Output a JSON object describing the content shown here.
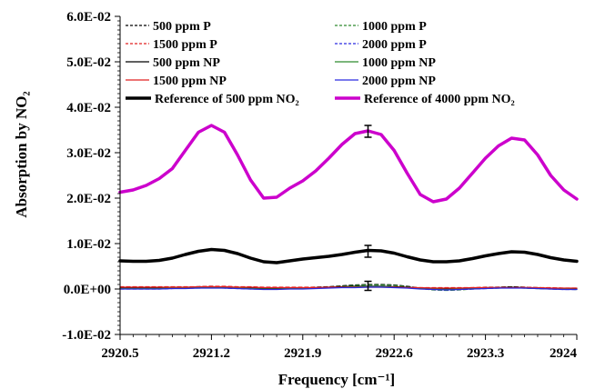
{
  "chart_data": {
    "type": "line",
    "title": "",
    "xlabel": "Frequency [cm⁻¹]",
    "ylabel": "Absorption by NO₂",
    "xlim": [
      2920.5,
      2924
    ],
    "ylim": [
      -0.01,
      0.06
    ],
    "x_ticks": [
      2920.5,
      2921.2,
      2921.9,
      2922.6,
      2923.3,
      2924
    ],
    "x_tick_labels": [
      "2920.5",
      "2921.2",
      "2921.9",
      "2922.6",
      "2923.3",
      "2924"
    ],
    "y_ticks": [
      -0.01,
      0,
      0.01,
      0.02,
      0.03,
      0.04,
      0.05,
      0.06
    ],
    "y_tick_labels": [
      "-1.0E-02",
      "0.0E+00",
      "1.0E-02",
      "2.0E-02",
      "3.0E-02",
      "4.0E-02",
      "5.0E-02",
      "6.0E-02"
    ],
    "grid": false,
    "legend_position": "top",
    "x": [
      2920.5,
      2920.6,
      2920.7,
      2920.8,
      2920.9,
      2921.0,
      2921.1,
      2921.2,
      2921.3,
      2921.4,
      2921.5,
      2921.6,
      2921.7,
      2921.8,
      2921.9,
      2922.0,
      2922.1,
      2922.2,
      2922.3,
      2922.4,
      2922.5,
      2922.6,
      2922.7,
      2922.8,
      2922.9,
      2923.0,
      2923.1,
      2923.2,
      2923.3,
      2923.4,
      2923.5,
      2923.6,
      2923.7,
      2923.8,
      2923.9,
      2924.0
    ],
    "series": [
      {
        "name": "500 ppm P",
        "color": "#000000",
        "dash": "dashed",
        "width": 1.3,
        "values": [
          0.0002,
          0.0002,
          0.0002,
          0.0002,
          0.0003,
          0.0004,
          0.0005,
          0.0006,
          0.0005,
          0.0004,
          0.0002,
          0.0001,
          0.0001,
          0.0002,
          0.0003,
          0.0004,
          0.0005,
          0.0007,
          0.0009,
          0.001,
          0.001,
          0.0009,
          0.0006,
          0.0002,
          -0.0001,
          -0.0002,
          -0.0001,
          0.0001,
          0.0003,
          0.0004,
          0.0005,
          0.0004,
          0.0003,
          0.0002,
          0.0001,
          0.0
        ]
      },
      {
        "name": "1000 ppm P",
        "color": "#2e8b2e",
        "dash": "dashed",
        "width": 1.3,
        "values": [
          0.0001,
          0.0001,
          0.0001,
          0.0001,
          0.0002,
          0.0003,
          0.0004,
          0.0005,
          0.0004,
          0.0003,
          0.0001,
          0.0,
          0.0,
          0.0001,
          0.0002,
          0.0003,
          0.0004,
          0.0006,
          0.0008,
          0.0009,
          0.0009,
          0.0008,
          0.0005,
          0.0001,
          -0.0002,
          -0.0003,
          -0.0002,
          0.0,
          0.0002,
          0.0003,
          0.0004,
          0.0003,
          0.0002,
          0.0001,
          0.0,
          -0.0001
        ]
      },
      {
        "name": "1500 ppm P",
        "color": "#e02020",
        "dash": "dashed",
        "width": 1.3,
        "values": [
          0.0005,
          0.0005,
          0.0005,
          0.0005,
          0.0005,
          0.0005,
          0.0005,
          0.0006,
          0.0006,
          0.0005,
          0.0005,
          0.0004,
          0.0004,
          0.0004,
          0.0004,
          0.0004,
          0.0004,
          0.0005,
          0.0005,
          0.0005,
          0.0005,
          0.0005,
          0.0004,
          0.0003,
          0.0003,
          0.0003,
          0.0003,
          0.0003,
          0.0004,
          0.0004,
          0.0004,
          0.0004,
          0.0003,
          0.0003,
          0.0002,
          0.0002
        ]
      },
      {
        "name": "2000 ppm P",
        "color": "#2a2ae0",
        "dash": "dashed",
        "width": 1.3,
        "values": [
          0.0,
          0.0,
          0.0,
          0.0,
          0.0001,
          0.0002,
          0.0002,
          0.0003,
          0.0002,
          0.0001,
          0.0,
          0.0,
          0.0,
          0.0001,
          0.0001,
          0.0002,
          0.0003,
          0.0004,
          0.0005,
          0.0006,
          0.0006,
          0.0005,
          0.0003,
          0.0001,
          -0.0001,
          -0.0002,
          -0.0001,
          0.0,
          0.0001,
          0.0002,
          0.0003,
          0.0002,
          0.0001,
          0.0,
          -0.0001,
          -0.0001
        ]
      },
      {
        "name": "500 ppm NP",
        "color": "#000000",
        "dash": "solid",
        "width": 1.3,
        "values": [
          0.0002,
          0.0002,
          0.0002,
          0.0002,
          0.0003,
          0.0003,
          0.0004,
          0.0004,
          0.0004,
          0.0003,
          0.0002,
          0.0001,
          0.0001,
          0.0002,
          0.0002,
          0.0003,
          0.0004,
          0.0005,
          0.0006,
          0.0006,
          0.0006,
          0.0005,
          0.0004,
          0.0002,
          0.0001,
          0.0,
          0.0001,
          0.0002,
          0.0003,
          0.0003,
          0.0004,
          0.0003,
          0.0002,
          0.0001,
          0.0001,
          0.0
        ]
      },
      {
        "name": "1000 ppm NP",
        "color": "#2e8b2e",
        "dash": "solid",
        "width": 1.3,
        "values": [
          0.0001,
          0.0001,
          0.0001,
          0.0001,
          0.0002,
          0.0002,
          0.0003,
          0.0003,
          0.0003,
          0.0002,
          0.0001,
          0.0,
          0.0,
          0.0001,
          0.0001,
          0.0002,
          0.0003,
          0.0004,
          0.0005,
          0.0005,
          0.0005,
          0.0004,
          0.0003,
          0.0001,
          0.0,
          -0.0001,
          0.0,
          0.0001,
          0.0002,
          0.0002,
          0.0003,
          0.0002,
          0.0001,
          0.0,
          0.0,
          -0.0001
        ]
      },
      {
        "name": "1500 ppm NP",
        "color": "#e02020",
        "dash": "solid",
        "width": 1.3,
        "values": [
          0.0004,
          0.0004,
          0.0004,
          0.0004,
          0.0004,
          0.0004,
          0.0005,
          0.0005,
          0.0005,
          0.0004,
          0.0004,
          0.0003,
          0.0003,
          0.0003,
          0.0003,
          0.0003,
          0.0004,
          0.0004,
          0.0004,
          0.0004,
          0.0004,
          0.0004,
          0.0003,
          0.0003,
          0.0002,
          0.0002,
          0.0002,
          0.0003,
          0.0003,
          0.0003,
          0.0003,
          0.0003,
          0.0003,
          0.0002,
          0.0002,
          0.0002
        ]
      },
      {
        "name": "2000 ppm NP",
        "color": "#2a2ae0",
        "dash": "solid",
        "width": 1.3,
        "values": [
          0.0,
          0.0,
          0.0,
          0.0,
          0.0001,
          0.0001,
          0.0002,
          0.0002,
          0.0002,
          0.0001,
          0.0,
          -0.0001,
          -0.0001,
          0.0,
          0.0,
          0.0001,
          0.0002,
          0.0003,
          0.0003,
          0.0004,
          0.0004,
          0.0003,
          0.0002,
          0.0,
          -0.0001,
          -0.0002,
          -0.0001,
          0.0,
          0.0001,
          0.0002,
          0.0002,
          0.0002,
          0.0001,
          0.0,
          -0.0001,
          -0.0001
        ]
      },
      {
        "name": "Reference of 500 ppm NO₂",
        "color": "#000000",
        "dash": "solid",
        "width": 3.5,
        "values": [
          0.0062,
          0.0061,
          0.0061,
          0.0063,
          0.0068,
          0.0076,
          0.0083,
          0.0087,
          0.0085,
          0.0078,
          0.0068,
          0.006,
          0.0058,
          0.0062,
          0.0066,
          0.0069,
          0.0072,
          0.0076,
          0.0081,
          0.0085,
          0.0084,
          0.0079,
          0.0071,
          0.0064,
          0.006,
          0.006,
          0.0062,
          0.0067,
          0.0073,
          0.0078,
          0.0082,
          0.0081,
          0.0076,
          0.0069,
          0.0064,
          0.0061
        ]
      },
      {
        "name": "Reference of 4000 ppm NO₂",
        "color": "#cc00cc",
        "dash": "solid",
        "width": 3.5,
        "values": [
          0.0213,
          0.0218,
          0.0228,
          0.0243,
          0.0265,
          0.0305,
          0.0345,
          0.036,
          0.0345,
          0.0295,
          0.024,
          0.02,
          0.0202,
          0.0222,
          0.0238,
          0.026,
          0.0288,
          0.0318,
          0.0342,
          0.0348,
          0.034,
          0.0305,
          0.0255,
          0.0208,
          0.0192,
          0.0198,
          0.0222,
          0.0255,
          0.0288,
          0.0315,
          0.0332,
          0.0328,
          0.0295,
          0.025,
          0.0218,
          0.0198
        ]
      }
    ],
    "error_bars": [
      {
        "x": 2922.4,
        "y": 0.0347,
        "err": 0.0013
      },
      {
        "x": 2922.4,
        "y": 0.0083,
        "err": 0.0013
      },
      {
        "x": 2922.4,
        "y": 0.0007,
        "err": 0.001
      }
    ]
  }
}
